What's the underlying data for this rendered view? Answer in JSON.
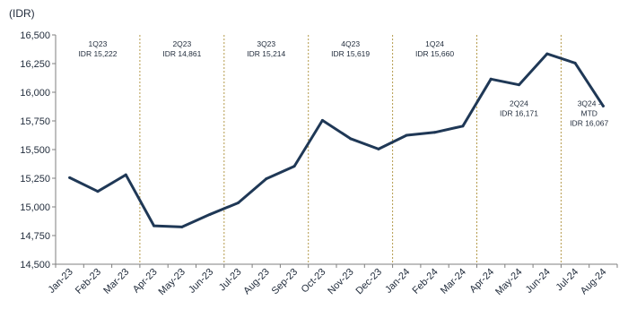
{
  "chart_data": {
    "type": "line",
    "unit_label": "(IDR)",
    "categories": [
      "Jan-23",
      "Feb-23",
      "Mar-23",
      "Apr-23",
      "May-23",
      "Jun-23",
      "Jul-23",
      "Aug-23",
      "Sep-23",
      "Oct-23",
      "Nov-23",
      "Dec-23",
      "Jan-24",
      "Feb-24",
      "Mar-24",
      "Apr-24",
      "May-24",
      "Jun-24",
      "Jul-24",
      "Aug-24"
    ],
    "values": [
      15255,
      15135,
      15280,
      14835,
      14825,
      14935,
      15035,
      15245,
      15355,
      15755,
      15595,
      15505,
      15625,
      15650,
      15705,
      16115,
      16065,
      16335,
      16255,
      15880
    ],
    "ylim": [
      14500,
      16500
    ],
    "yticks": [
      "14,500",
      "14,750",
      "15,000",
      "15,250",
      "15,500",
      "15,750",
      "16,000",
      "16,250",
      "16,500"
    ],
    "yticks_values": [
      14500,
      14750,
      15000,
      15250,
      15500,
      15750,
      16000,
      16250,
      16500
    ],
    "quarter_dividers_after": [
      "Mar-23",
      "Jun-23",
      "Sep-23",
      "Dec-23",
      "Mar-24",
      "Jun-24"
    ],
    "line_color": "#1f3856",
    "divider_color": "#b49a4a",
    "annotations": [
      {
        "lines": [
          "1Q23",
          "IDR 15,222"
        ],
        "between": [
          "Jan-23",
          "Mar-23"
        ],
        "level": 16400
      },
      {
        "lines": [
          "2Q23",
          "IDR 14,861"
        ],
        "between": [
          "Apr-23",
          "Jun-23"
        ],
        "level": 16400
      },
      {
        "lines": [
          "3Q23",
          "IDR 15,214"
        ],
        "between": [
          "Jul-23",
          "Sep-23"
        ],
        "level": 16400
      },
      {
        "lines": [
          "4Q23",
          "IDR 15,619"
        ],
        "between": [
          "Oct-23",
          "Dec-23"
        ],
        "level": 16400
      },
      {
        "lines": [
          "1Q24",
          "IDR 15,660"
        ],
        "between": [
          "Jan-24",
          "Mar-24"
        ],
        "level": 16400
      },
      {
        "lines": [
          "2Q24",
          "IDR 16,171"
        ],
        "between": [
          "Apr-24",
          "Jun-24"
        ],
        "level": 15880
      },
      {
        "lines": [
          "3Q24 -",
          "MTD",
          "IDR 16,067"
        ],
        "between": [
          "Jul-24",
          "Aug-24"
        ],
        "level": 15880
      }
    ]
  }
}
